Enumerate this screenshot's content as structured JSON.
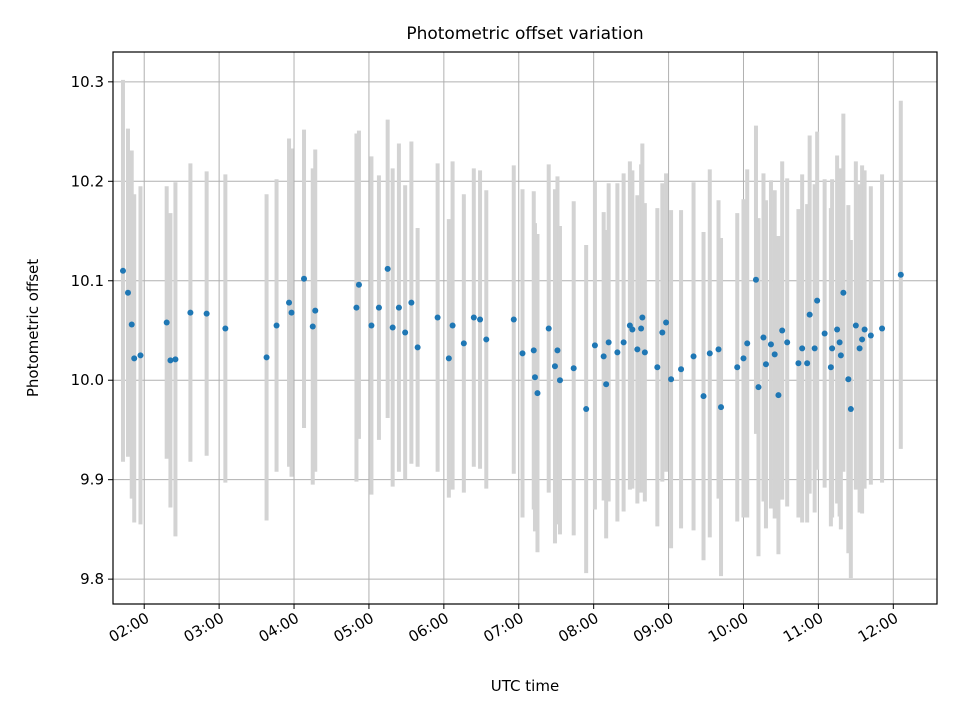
{
  "chart_data": {
    "type": "scatter",
    "title": "Photometric offset variation",
    "xlabel": "UTC time",
    "ylabel": "Photometric offset",
    "x_axis_type": "time",
    "xlim": [
      "01:35",
      "12:35"
    ],
    "ylim": [
      9.775,
      10.33
    ],
    "xticks": [
      "02:00",
      "03:00",
      "04:00",
      "05:00",
      "06:00",
      "07:00",
      "08:00",
      "09:00",
      "10:00",
      "11:00",
      "12:00"
    ],
    "yticks": [
      9.8,
      9.9,
      10.0,
      10.1,
      10.2,
      10.3
    ],
    "ytick_labels": [
      "9.8",
      "9.9",
      "10.0",
      "10.1",
      "10.2",
      "10.3"
    ],
    "grid": true,
    "errorbar_color": "#d3d3d3",
    "point_color": "#1f77b4",
    "points": [
      [
        "01:43",
        10.11,
        0.192
      ],
      [
        "01:47",
        10.088,
        0.165
      ],
      [
        "01:50",
        10.056,
        0.175
      ],
      [
        "01:52",
        10.022,
        0.165
      ],
      [
        "01:57",
        10.025,
        0.17
      ],
      [
        "02:18",
        10.058,
        0.137
      ],
      [
        "02:21",
        10.02,
        0.148
      ],
      [
        "02:25",
        10.021,
        0.178
      ],
      [
        "02:37",
        10.068,
        0.15
      ],
      [
        "02:50",
        10.067,
        0.143
      ],
      [
        "03:05",
        10.052,
        0.155
      ],
      [
        "03:38",
        10.023,
        0.164
      ],
      [
        "03:46",
        10.055,
        0.147
      ],
      [
        "03:56",
        10.078,
        0.165
      ],
      [
        "03:58",
        10.068,
        0.165
      ],
      [
        "04:08",
        10.102,
        0.15
      ],
      [
        "04:15",
        10.054,
        0.159
      ],
      [
        "04:17",
        10.07,
        0.162
      ],
      [
        "04:50",
        10.073,
        0.175
      ],
      [
        "04:52",
        10.096,
        0.155
      ],
      [
        "05:02",
        10.055,
        0.17
      ],
      [
        "05:08",
        10.073,
        0.133
      ],
      [
        "05:15",
        10.112,
        0.15
      ],
      [
        "05:19",
        10.053,
        0.16
      ],
      [
        "05:24",
        10.073,
        0.165
      ],
      [
        "05:29",
        10.048,
        0.148
      ],
      [
        "05:34",
        10.078,
        0.162
      ],
      [
        "05:39",
        10.033,
        0.12
      ],
      [
        "05:55",
        10.063,
        0.155
      ],
      [
        "06:04",
        10.022,
        0.14
      ],
      [
        "06:07",
        10.055,
        0.165
      ],
      [
        "06:16",
        10.037,
        0.15
      ],
      [
        "06:24",
        10.063,
        0.15
      ],
      [
        "06:29",
        10.061,
        0.15
      ],
      [
        "06:34",
        10.041,
        0.15
      ],
      [
        "06:56",
        10.061,
        0.155
      ],
      [
        "07:03",
        10.027,
        0.165
      ],
      [
        "07:12",
        10.03,
        0.16
      ],
      [
        "07:13",
        10.003,
        0.155
      ],
      [
        "07:15",
        9.987,
        0.16
      ],
      [
        "07:24",
        10.052,
        0.165
      ],
      [
        "07:29",
        10.014,
        0.178
      ],
      [
        "07:31",
        10.03,
        0.175
      ],
      [
        "07:33",
        10.0,
        0.155
      ],
      [
        "07:44",
        10.012,
        0.168
      ],
      [
        "07:54",
        9.971,
        0.165
      ],
      [
        "08:01",
        10.035,
        0.165
      ],
      [
        "08:08",
        10.024,
        0.145
      ],
      [
        "08:10",
        9.996,
        0.155
      ],
      [
        "08:12",
        10.038,
        0.16
      ],
      [
        "08:19",
        10.028,
        0.17
      ],
      [
        "08:24",
        10.038,
        0.17
      ],
      [
        "08:29",
        10.055,
        0.165
      ],
      [
        "08:31",
        10.051,
        0.16
      ],
      [
        "08:35",
        10.031,
        0.155
      ],
      [
        "08:38",
        10.052,
        0.165
      ],
      [
        "08:39",
        10.063,
        0.175
      ],
      [
        "08:41",
        10.028,
        0.15
      ],
      [
        "08:51",
        10.013,
        0.16
      ],
      [
        "08:55",
        10.048,
        0.15
      ],
      [
        "08:58",
        10.058,
        0.15
      ],
      [
        "09:02",
        10.001,
        0.17
      ],
      [
        "09:10",
        10.011,
        0.16
      ],
      [
        "09:20",
        10.024,
        0.175
      ],
      [
        "09:28",
        9.984,
        0.165
      ],
      [
        "09:33",
        10.027,
        0.185
      ],
      [
        "09:40",
        10.031,
        0.15
      ],
      [
        "09:42",
        9.973,
        0.17
      ],
      [
        "09:55",
        10.013,
        0.155
      ],
      [
        "10:00",
        10.022,
        0.16
      ],
      [
        "10:03",
        10.037,
        0.175
      ],
      [
        "10:10",
        10.101,
        0.155
      ],
      [
        "10:12",
        9.993,
        0.17
      ],
      [
        "10:16",
        10.043,
        0.165
      ],
      [
        "10:18",
        10.016,
        0.165
      ],
      [
        "10:22",
        10.036,
        0.165
      ],
      [
        "10:25",
        10.026,
        0.165
      ],
      [
        "10:28",
        9.985,
        0.16
      ],
      [
        "10:31",
        10.05,
        0.17
      ],
      [
        "10:35",
        10.038,
        0.165
      ],
      [
        "10:44",
        10.017,
        0.155
      ],
      [
        "10:47",
        10.032,
        0.175
      ],
      [
        "10:51",
        10.017,
        0.16
      ],
      [
        "10:53",
        10.066,
        0.18
      ],
      [
        "10:57",
        10.032,
        0.165
      ],
      [
        "10:59",
        10.08,
        0.17
      ],
      [
        "11:05",
        10.047,
        0.155
      ],
      [
        "11:10",
        10.013,
        0.16
      ],
      [
        "11:11",
        10.032,
        0.17
      ],
      [
        "11:15",
        10.051,
        0.175
      ],
      [
        "11:17",
        10.038,
        0.175
      ],
      [
        "11:18",
        10.025,
        0.175
      ],
      [
        "11:20",
        10.088,
        0.18
      ],
      [
        "11:24",
        10.001,
        0.175
      ],
      [
        "11:26",
        9.971,
        0.17
      ],
      [
        "11:30",
        10.055,
        0.165
      ],
      [
        "11:33",
        10.032,
        0.165
      ],
      [
        "11:35",
        10.041,
        0.175
      ],
      [
        "11:37",
        10.051,
        0.16
      ],
      [
        "11:42",
        10.045,
        0.15
      ],
      [
        "11:51",
        10.052,
        0.155
      ],
      [
        "12:06",
        10.106,
        0.175
      ]
    ]
  }
}
